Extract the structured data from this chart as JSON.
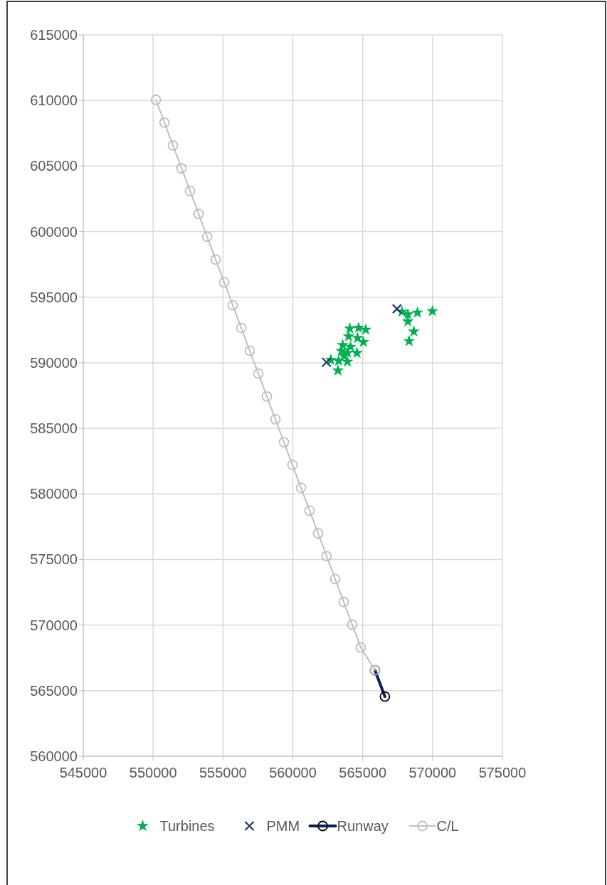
{
  "chart_data": {
    "type": "scatter",
    "xlim": [
      545000,
      575000
    ],
    "ylim": [
      560000,
      615000
    ],
    "xticks": [
      545000,
      550000,
      555000,
      560000,
      565000,
      570000,
      575000
    ],
    "yticks": [
      560000,
      565000,
      570000,
      575000,
      580000,
      585000,
      590000,
      595000,
      600000,
      605000,
      610000,
      615000
    ],
    "grid": true,
    "legend": "bottom",
    "series": [
      {
        "name": "Turbines",
        "marker": "star",
        "color": "#00b050",
        "x": [
          567810,
          568235,
          568920,
          569990,
          568235,
          568660,
          568320,
          564080,
          564710,
          565220,
          563990,
          564640,
          565050,
          563570,
          564130,
          563480,
          563910,
          564590,
          562720,
          563280,
          563910,
          563230,
          563650
        ],
        "values": [
          593880,
          593690,
          593820,
          593930,
          593150,
          592380,
          591650,
          592610,
          592660,
          592520,
          592010,
          591890,
          591580,
          591350,
          591220,
          590900,
          590750,
          590750,
          590210,
          590140,
          590080,
          589410,
          590530
        ]
      },
      {
        "name": "PMM",
        "marker": "cross",
        "color": "#1f3864",
        "x": [
          562410,
          567455
        ],
        "values": [
          590040,
          594110
        ]
      },
      {
        "name": "Runway",
        "type": "line",
        "marker": "circle",
        "color": "#002060",
        "x": [
          565876,
          566590
        ],
        "values": [
          566560,
          564550
        ]
      },
      {
        "name": "C/L",
        "type": "line",
        "marker": "circle",
        "color": "#bfbfbf",
        "x": [
          550200,
          550811,
          551422,
          552033,
          552644,
          553255,
          553866,
          554477,
          555088,
          555699,
          556310,
          556921,
          557532,
          558143,
          558754,
          559365,
          559976,
          560587,
          561198,
          561809,
          562420,
          563031,
          563642,
          564253,
          564864,
          565876
        ],
        "values": [
          610050,
          608310,
          606570,
          604830,
          603090,
          601350,
          599610,
          597870,
          596130,
          594390,
          592650,
          590910,
          589170,
          587430,
          585690,
          583950,
          582210,
          580470,
          578730,
          576990,
          575250,
          573510,
          571770,
          570030,
          568290,
          566560
        ]
      }
    ]
  }
}
